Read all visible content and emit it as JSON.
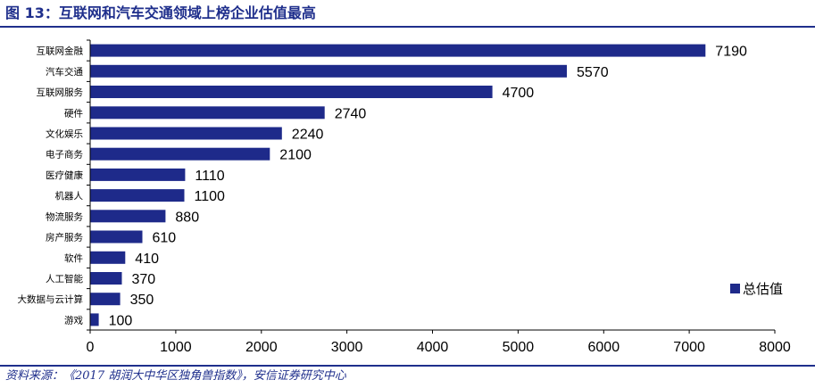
{
  "header": {
    "title": "图 13：互联网和汽车交通领域上榜企业估值最高"
  },
  "footer": {
    "source": "资料来源：《2017 胡润大中华区独角兽指数》，安信证券研究中心"
  },
  "colors": {
    "bar": "#1e2a8a",
    "accent": "#1f2f8c",
    "axis": "#000000"
  },
  "chart_data": {
    "type": "bar",
    "orientation": "horizontal",
    "title": "",
    "xlabel": "",
    "ylabel": "",
    "categories": [
      "互联网金融",
      "汽车交通",
      "互联网服务",
      "硬件",
      "文化娱乐",
      "电子商务",
      "医疗健康",
      "机器人",
      "物流服务",
      "房产服务",
      "软件",
      "人工智能",
      "大数据与云计算",
      "游戏"
    ],
    "series": [
      {
        "name": "总估值",
        "values": [
          7190,
          5570,
          4700,
          2740,
          2240,
          2100,
          1110,
          1100,
          880,
          610,
          410,
          370,
          350,
          100
        ]
      }
    ],
    "xlim": [
      0,
      8000
    ],
    "xticks": [
      "0",
      "1000",
      "2000",
      "3000",
      "4000",
      "5000",
      "6000",
      "7000",
      "8000"
    ],
    "data_labels": true,
    "grid": false,
    "legend": "bottom-right"
  }
}
